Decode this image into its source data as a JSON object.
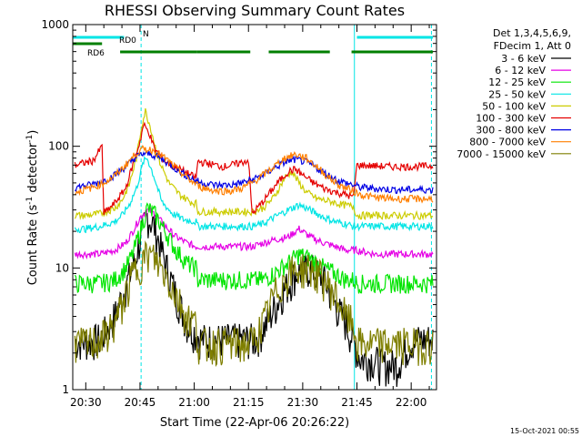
{
  "chart_data": {
    "type": "line",
    "title": "RHESSI Observing Summary Count Rates",
    "xlabel": "Start Time (22-Apr-06 20:26:22)",
    "ylabel_main": "Count Rate (s",
    "ylabel_sup1": "-1",
    "ylabel_mid": " detector",
    "ylabel_sup2": "-1",
    "ylabel_end": ")",
    "footer": "15-Oct-2021 00:55",
    "x_start": "22-Apr-06 20:26:22",
    "x_range_minutes": [
      26.4,
      127.0
    ],
    "y_scale": "log",
    "ylim": [
      1,
      1000
    ],
    "y_ticks": [
      {
        "value": 1,
        "label": "1"
      },
      {
        "value": 10,
        "label": "10"
      },
      {
        "value": 100,
        "label": "100"
      },
      {
        "value": 1000,
        "label": "1000"
      }
    ],
    "x_ticks": [
      {
        "minute": 30,
        "label": "20:30"
      },
      {
        "minute": 45,
        "label": "20:45"
      },
      {
        "minute": 60,
        "label": "21:00"
      },
      {
        "minute": 75,
        "label": "21:15"
      },
      {
        "minute": 90,
        "label": "21:30"
      },
      {
        "minute": 105,
        "label": "21:45"
      },
      {
        "minute": 120,
        "label": "22:00"
      }
    ],
    "legend_header": [
      "Det 1,3,4,5,6,9,",
      "FDecim 1, Att 0"
    ],
    "legend_placement": "right",
    "flags": [
      {
        "name": "N",
        "color": "#00e5e5",
        "segments": [
          [
            26.4,
            40.6
          ],
          [
            105.0,
            126.0
          ]
        ]
      },
      {
        "name": "RD0",
        "color": "#007f00",
        "segments": [
          [
            26.4,
            34.5
          ]
        ]
      },
      {
        "name": "RD6",
        "color": "#007f00",
        "segments": [
          [
            39.5,
            60.7
          ],
          [
            60.7,
            75.5
          ],
          [
            80.6,
            97.5
          ],
          [
            103.5,
            126.0
          ]
        ]
      }
    ],
    "vlines_dashed": [
      45.3,
      125.6
    ],
    "vlines_solid": [
      104.3
    ],
    "series": [
      {
        "name": "3 - 6 keV",
        "color": "#000000",
        "x": [
          27,
          30,
          34,
          38,
          41,
          43,
          45,
          47,
          49,
          52,
          55,
          58,
          62,
          66,
          70,
          74,
          77,
          80,
          84,
          88,
          92,
          96,
          99,
          102,
          104,
          106,
          109,
          112,
          116,
          120,
          123,
          126
        ],
        "y": [
          2.5,
          2.5,
          2.6,
          4,
          7,
          10,
          17,
          27,
          22,
          11,
          6,
          3.5,
          2.6,
          2.6,
          2.6,
          2.6,
          2.6,
          3.5,
          6,
          9,
          10,
          8,
          5,
          3.5,
          2.5,
          1.8,
          1.8,
          1.6,
          1.6,
          2.5,
          2.6,
          2.6
        ]
      },
      {
        "name": "6 - 12 keV",
        "color": "#e500e5",
        "x": [
          27,
          30,
          34,
          38,
          41,
          43,
          45,
          47,
          49,
          52,
          55,
          58,
          60.5,
          61,
          64,
          68,
          72,
          75,
          76,
          79,
          82,
          86,
          89,
          92,
          96,
          99,
          102,
          104,
          105,
          110,
          115,
          120,
          126
        ],
        "y": [
          13,
          13,
          13,
          14,
          16,
          20,
          26,
          30,
          28,
          22,
          18,
          16,
          15,
          15,
          15,
          15,
          15,
          15,
          15,
          16,
          17,
          18,
          21,
          18,
          16,
          15,
          14,
          14,
          14,
          13,
          13,
          13,
          13
        ]
      },
      {
        "name": "12 - 25 keV",
        "color": "#00e500",
        "x": [
          27,
          30,
          34,
          38,
          41,
          43,
          45,
          47,
          49,
          52,
          55,
          58,
          60.5,
          61,
          64,
          68,
          72,
          75,
          76,
          79,
          82,
          86,
          89,
          92,
          96,
          99,
          102,
          104,
          105,
          110,
          115,
          120,
          126
        ],
        "y": [
          7.5,
          7.5,
          7.5,
          8,
          10,
          13,
          20,
          31,
          28,
          20,
          14,
          11,
          10,
          8,
          8,
          8,
          8,
          8,
          8,
          8,
          9,
          11,
          13,
          12,
          10,
          9,
          8,
          8,
          7.5,
          7.5,
          7.5,
          7.5,
          7.5
        ]
      },
      {
        "name": "25 - 50 keV",
        "color": "#00e5e5",
        "x": [
          27,
          30,
          34,
          38,
          40,
          42,
          44,
          46,
          47,
          49,
          51,
          54,
          57,
          60.5,
          61,
          64,
          68,
          72,
          75,
          76,
          79,
          82,
          86,
          89,
          92,
          96,
          99,
          102,
          104,
          105,
          110,
          115,
          120,
          126
        ],
        "y": [
          21,
          21,
          22,
          24,
          27,
          33,
          45,
          75,
          80,
          55,
          35,
          28,
          25,
          24,
          22,
          22,
          22,
          22,
          22,
          22,
          23,
          26,
          30,
          33,
          30,
          26,
          24,
          23,
          22,
          22,
          22,
          22,
          22,
          22
        ]
      },
      {
        "name": "50 - 100 keV",
        "color": "#cccc00",
        "x": [
          27,
          30,
          34,
          38,
          40,
          42,
          44,
          45.5,
          46.5,
          48,
          50,
          53,
          56,
          59,
          60.5,
          61,
          64,
          68,
          72,
          75,
          76,
          79,
          82,
          85,
          87,
          89,
          91,
          94,
          98,
          101,
          104,
          105,
          110,
          115,
          120,
          126
        ],
        "y": [
          27,
          27,
          28,
          31,
          36,
          48,
          80,
          150,
          195,
          140,
          80,
          50,
          40,
          35,
          34,
          29,
          29,
          29,
          29,
          29,
          29,
          31,
          38,
          55,
          62,
          50,
          42,
          37,
          35,
          33,
          32,
          27,
          27,
          27,
          27,
          27
        ]
      },
      {
        "name": "100 - 300 keV",
        "color": "#e50000",
        "x": [
          27,
          32,
          34.5,
          35,
          38,
          41,
          43,
          45,
          46,
          47.5,
          49,
          52,
          56,
          59,
          60.5,
          61,
          64,
          68,
          72,
          75,
          76,
          79,
          83,
          86,
          88,
          90,
          93,
          96,
          99,
          102,
          104,
          105,
          110,
          115,
          120,
          126
        ],
        "y": [
          70,
          76,
          100,
          28,
          34,
          45,
          70,
          110,
          150,
          130,
          95,
          75,
          65,
          58,
          55,
          75,
          72,
          68,
          72,
          77,
          28,
          35,
          50,
          62,
          65,
          58,
          50,
          45,
          42,
          40,
          38,
          70,
          69,
          68,
          68,
          69
        ]
      },
      {
        "name": "300 - 800 keV",
        "color": "#0000e5",
        "x": [
          27,
          31,
          35,
          38,
          41,
          44,
          46,
          48,
          50,
          53,
          56,
          59,
          62,
          66,
          70,
          73,
          76,
          79,
          82,
          85,
          88,
          91,
          94,
          97,
          100,
          104,
          106,
          110,
          115,
          120,
          126
        ],
        "y": [
          46,
          48,
          52,
          58,
          68,
          82,
          87,
          86,
          82,
          72,
          62,
          55,
          50,
          48,
          48,
          50,
          53,
          58,
          66,
          74,
          78,
          74,
          66,
          58,
          52,
          48,
          46,
          45,
          44,
          44,
          44
        ]
      },
      {
        "name": "800 - 7000 keV",
        "color": "#ff7f00",
        "x": [
          27,
          31,
          35,
          38,
          41,
          44,
          46,
          48,
          50,
          53,
          56,
          59,
          62,
          66,
          70,
          73,
          76,
          79,
          82,
          85,
          88,
          91,
          94,
          97,
          100,
          104,
          106,
          110,
          115,
          120,
          126
        ],
        "y": [
          42,
          45,
          50,
          57,
          70,
          88,
          95,
          94,
          88,
          75,
          62,
          52,
          46,
          43,
          43,
          45,
          50,
          58,
          68,
          80,
          86,
          80,
          68,
          56,
          48,
          43,
          40,
          38,
          37,
          37,
          37
        ]
      },
      {
        "name": "7000 - 15000 keV",
        "color": "#7f7f00",
        "x": [
          27,
          30,
          34,
          38,
          41,
          43,
          45,
          47,
          49,
          52,
          55,
          58,
          60.5,
          61,
          64,
          68,
          72,
          75,
          76,
          79,
          82,
          86,
          89,
          92,
          96,
          99,
          102,
          104,
          105,
          110,
          115,
          120,
          126
        ],
        "y": [
          2.4,
          2.4,
          2.6,
          3.5,
          6,
          9,
          11,
          13,
          12,
          9,
          6,
          4,
          3.5,
          2.4,
          2.4,
          2.4,
          2.4,
          2.4,
          2.5,
          3.5,
          6,
          9,
          10,
          10,
          8,
          6,
          4,
          3.5,
          2.4,
          2.4,
          2.4,
          2.4,
          2.4
        ]
      }
    ]
  }
}
